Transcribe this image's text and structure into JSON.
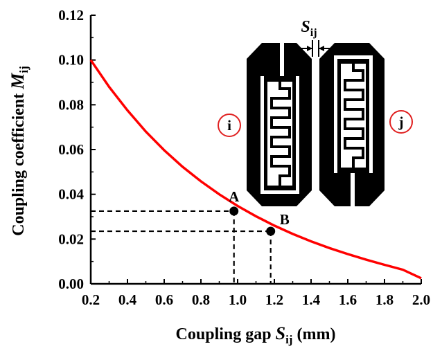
{
  "chart_data": {
    "type": "line",
    "xlabel": {
      "prefix": "Coupling gap ",
      "var": "S",
      "sub": "ij",
      "suffix": " (mm)"
    },
    "ylabel": {
      "prefix": "Coupling coefficient ",
      "var": "M",
      "sub": "ij"
    },
    "xlim": [
      0.2,
      2.0
    ],
    "ylim": [
      0.0,
      0.12
    ],
    "x_ticks": [
      "0.2",
      "0.4",
      "0.6",
      "0.8",
      "1.0",
      "1.2",
      "1.4",
      "1.6",
      "1.8",
      "2.0"
    ],
    "y_ticks": [
      "0.00",
      "0.02",
      "0.04",
      "0.06",
      "0.08",
      "0.10",
      "0.12"
    ],
    "series": [
      {
        "color": "#ff0000",
        "x": [
          0.2,
          0.3,
          0.4,
          0.5,
          0.6,
          0.7,
          0.8,
          0.9,
          1.0,
          1.1,
          1.2,
          1.3,
          1.4,
          1.5,
          1.6,
          1.7,
          1.8,
          1.9,
          2.0
        ],
        "y": [
          0.1,
          0.088,
          0.0775,
          0.068,
          0.0597,
          0.0523,
          0.0458,
          0.04,
          0.0348,
          0.0302,
          0.026,
          0.0223,
          0.019,
          0.016,
          0.0133,
          0.0108,
          0.0085,
          0.0063,
          0.0025
        ]
      }
    ],
    "points": [
      {
        "label": "A",
        "x": 0.98,
        "y": 0.0325
      },
      {
        "label": "B",
        "x": 1.18,
        "y": 0.0235
      }
    ],
    "inset": {
      "gap_var": "S",
      "gap_sub": "ij",
      "left_label": "i",
      "right_label": "j",
      "label_color": "#e02020"
    },
    "grid": false
  }
}
